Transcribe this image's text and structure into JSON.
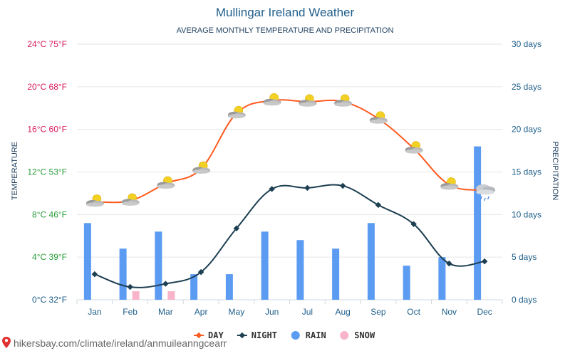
{
  "colors": {
    "day": "#ff5a1f",
    "night": "#1d3f52",
    "rain": "#5b9bf2",
    "snow": "#f8b4c8",
    "grid": "#e6e6e6",
    "title": "#1f5f8b",
    "right_axis": "#1f5f8b"
  },
  "chart_data": {
    "type": "line",
    "title": "Mullingar Ireland Weather",
    "subtitle": "AVERAGE MONTHLY TEMPERATURE AND PRECIPITATION",
    "categories": [
      "Jan",
      "Feb",
      "Mar",
      "Apr",
      "May",
      "Jun",
      "Jul",
      "Aug",
      "Sep",
      "Oct",
      "Nov",
      "Dec"
    ],
    "series": [
      {
        "name": "DAY",
        "type": "line",
        "axis": "left",
        "values": [
          9.2,
          9.3,
          10.9,
          12.3,
          17.5,
          18.7,
          18.6,
          18.6,
          17.0,
          14.2,
          10.8,
          10.3
        ]
      },
      {
        "name": "NIGHT",
        "type": "line",
        "axis": "left",
        "values": [
          2.4,
          1.2,
          1.5,
          2.6,
          6.7,
          10.4,
          10.5,
          10.7,
          8.9,
          7.1,
          3.4,
          3.6
        ]
      },
      {
        "name": "RAIN",
        "type": "bar",
        "axis": "right",
        "values": [
          9,
          6,
          8,
          3,
          3,
          8,
          7,
          6,
          9,
          4,
          5,
          18
        ]
      },
      {
        "name": "SNOW",
        "type": "bar",
        "axis": "right",
        "values": [
          0,
          1,
          1,
          0,
          0,
          0,
          0,
          0,
          0,
          0,
          0,
          0
        ]
      }
    ],
    "weather_icons": [
      "partly-cloudy",
      "partly-cloudy",
      "partly-cloudy",
      "partly-cloudy",
      "partly-cloudy",
      "partly-cloudy",
      "partly-cloudy",
      "partly-cloudy",
      "partly-cloudy",
      "partly-cloudy",
      "partly-cloudy",
      "rain-cloud"
    ],
    "y_left": {
      "label": "TEMPERATURE",
      "range": [
        0,
        24
      ],
      "ticks": [
        {
          "value": 0,
          "label": "0°C 32°F",
          "color": "#1f5f8b"
        },
        {
          "value": 4,
          "label": "4°C 39°F",
          "color": "#2a9d3a"
        },
        {
          "value": 8,
          "label": "8°C 46°F",
          "color": "#2a9d3a"
        },
        {
          "value": 12,
          "label": "12°C 53°F",
          "color": "#2a9d3a"
        },
        {
          "value": 16,
          "label": "16°C 60°F",
          "color": "#d81b60"
        },
        {
          "value": 20,
          "label": "20°C 68°F",
          "color": "#d81b60"
        },
        {
          "value": 24,
          "label": "24°C 75°F",
          "color": "#d81b60"
        }
      ]
    },
    "y_right": {
      "label": "PRECIPITATION",
      "range": [
        0,
        30
      ],
      "ticks": [
        {
          "value": 0,
          "label": "0 days"
        },
        {
          "value": 5,
          "label": "5 days"
        },
        {
          "value": 10,
          "label": "10 days"
        },
        {
          "value": 15,
          "label": "15 days"
        },
        {
          "value": 20,
          "label": "20 days"
        },
        {
          "value": 25,
          "label": "25 days"
        },
        {
          "value": 30,
          "label": "30 days"
        }
      ]
    },
    "legend": [
      {
        "name": "DAY",
        "marker": "line-diamond",
        "color": "#ff5a1f"
      },
      {
        "name": "NIGHT",
        "marker": "line-diamond",
        "color": "#1d3f52"
      },
      {
        "name": "RAIN",
        "marker": "circle",
        "color": "#5b9bf2"
      },
      {
        "name": "SNOW",
        "marker": "circle",
        "color": "#f8b4c8"
      }
    ],
    "legend_position": "bottom-center",
    "grid": true
  },
  "footer": {
    "icon": "location-pin-icon",
    "url_text": "hikersbay.com/climate/ireland/anmuileanngcearr"
  }
}
